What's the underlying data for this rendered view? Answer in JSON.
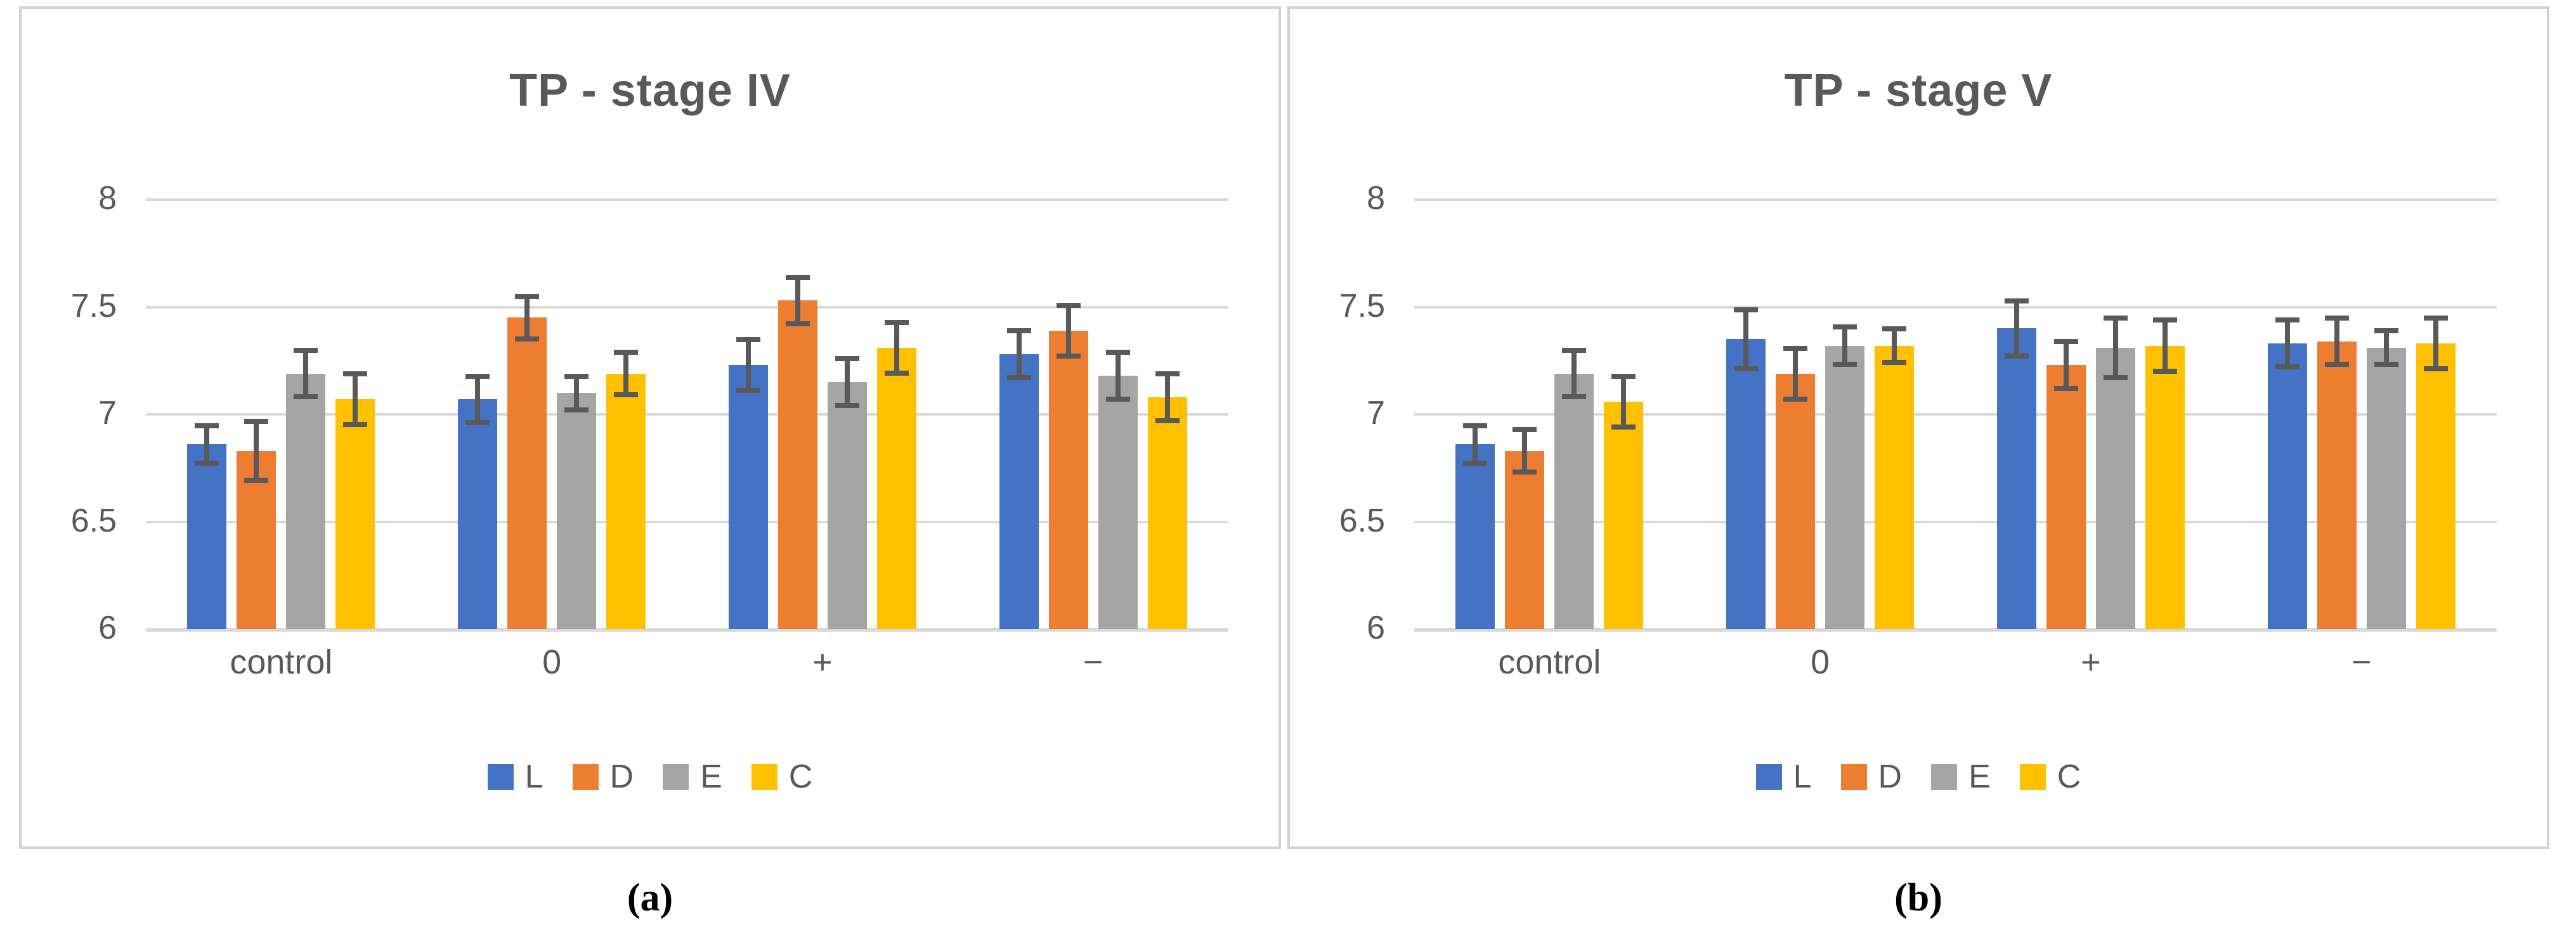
{
  "figure": {
    "background": "#FFFFFF",
    "panel_border_color": "#D2D2D2",
    "gridline_color": "#D9D9D9",
    "error_bar_color": "#595959",
    "text_color": "#595959",
    "caption_color": "#000000"
  },
  "legend": {
    "entries": [
      {
        "label": "L",
        "color": "#4472C4"
      },
      {
        "label": "D",
        "color": "#ED7D31"
      },
      {
        "label": "E",
        "color": "#A5A5A5"
      },
      {
        "label": "C",
        "color": "#FFC000"
      }
    ]
  },
  "chart_data": [
    {
      "type": "bar",
      "panel_caption": "(a)",
      "title": "TP - stage IV",
      "xlabel": "",
      "ylabel": "",
      "categories": [
        "control",
        "0",
        "+",
        "−"
      ],
      "y_ticks": [
        "8",
        "7.5",
        "7",
        "6.5",
        "6"
      ],
      "ylim": [
        6,
        8
      ],
      "grid": true,
      "legend_position": "bottom",
      "error_bars": true,
      "series": [
        {
          "name": "L",
          "color": "#4472C4",
          "values": [
            6.86,
            7.07,
            7.23,
            7.28
          ],
          "errors": [
            0.1,
            0.12,
            0.13,
            0.12
          ]
        },
        {
          "name": "D",
          "color": "#ED7D31",
          "values": [
            6.83,
            7.45,
            7.53,
            7.39
          ],
          "errors": [
            0.15,
            0.11,
            0.12,
            0.13
          ]
        },
        {
          "name": "E",
          "color": "#A5A5A5",
          "values": [
            7.19,
            7.1,
            7.15,
            7.18
          ],
          "errors": [
            0.12,
            0.09,
            0.12,
            0.12
          ]
        },
        {
          "name": "C",
          "color": "#FFC000",
          "values": [
            7.07,
            7.19,
            7.31,
            7.08
          ],
          "errors": [
            0.13,
            0.11,
            0.13,
            0.12
          ]
        }
      ]
    },
    {
      "type": "bar",
      "panel_caption": "(b)",
      "title": "TP - stage V",
      "xlabel": "",
      "ylabel": "",
      "categories": [
        "control",
        "0",
        "+",
        "−"
      ],
      "y_ticks": [
        "8",
        "7.5",
        "7",
        "6.5",
        "6"
      ],
      "ylim": [
        6,
        8
      ],
      "grid": true,
      "legend_position": "bottom",
      "error_bars": true,
      "series": [
        {
          "name": "L",
          "color": "#4472C4",
          "values": [
            6.86,
            7.35,
            7.4,
            7.33
          ],
          "errors": [
            0.1,
            0.15,
            0.14,
            0.12
          ]
        },
        {
          "name": "D",
          "color": "#ED7D31",
          "values": [
            6.83,
            7.19,
            7.23,
            7.34
          ],
          "errors": [
            0.11,
            0.13,
            0.12,
            0.12
          ]
        },
        {
          "name": "E",
          "color": "#A5A5A5",
          "values": [
            7.19,
            7.32,
            7.31,
            7.31
          ],
          "errors": [
            0.12,
            0.1,
            0.15,
            0.09
          ]
        },
        {
          "name": "C",
          "color": "#FFC000",
          "values": [
            7.06,
            7.32,
            7.32,
            7.33
          ],
          "errors": [
            0.13,
            0.09,
            0.13,
            0.13
          ]
        }
      ]
    }
  ]
}
